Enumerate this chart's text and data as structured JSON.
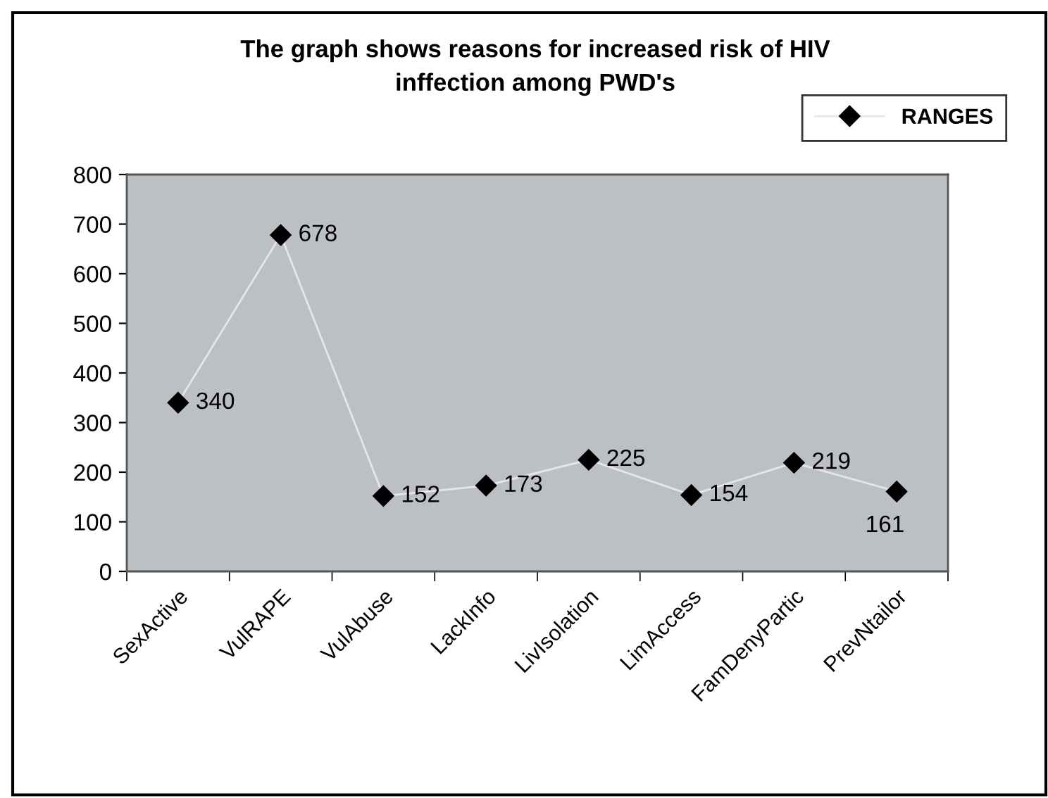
{
  "chart_data": {
    "type": "line",
    "title": "The graph shows reasons for increased risk of HIV\ninffection among PWD's",
    "categories": [
      "SexActive",
      "VulRAPE",
      "VulAbuse",
      "LackInfo",
      "LivIsolation",
      "LimAccess",
      "FamDenyPartic",
      "PrevNtailor"
    ],
    "series": [
      {
        "name": "RANGES",
        "color": "#000000",
        "values": [
          340,
          678,
          152,
          173,
          225,
          154,
          219,
          161
        ]
      }
    ],
    "ylim": [
      0,
      800
    ],
    "yticks": [
      0,
      100,
      200,
      300,
      400,
      500,
      600,
      700,
      800
    ],
    "data_labels": true,
    "legend": "top right",
    "marker": "diamond",
    "grid": false
  }
}
